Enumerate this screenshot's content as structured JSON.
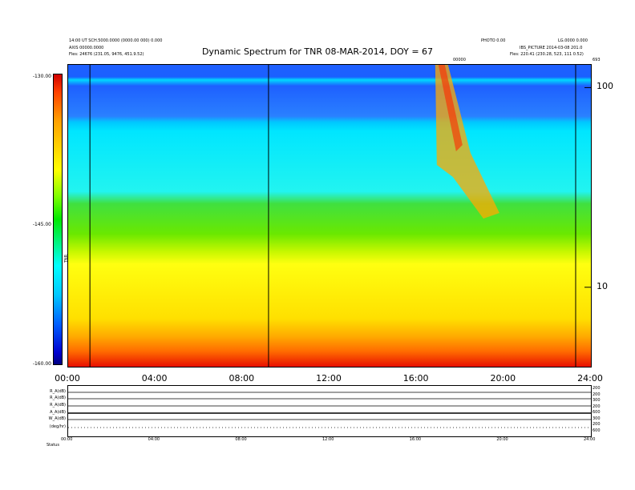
{
  "header": {
    "left_line1": "14:00 UT SCH.5000.0000 (0000.00 000) 0.000",
    "left_line2": "AXIS 00000.0000",
    "left_line3": "Fles:   24676 (231.05, 9476, 451.9.52)",
    "right_line1": "LG.0000 0.000",
    "right_line2": "IBS_PICTURE 2014-03-08 201.0",
    "right_line3": "Fles:   220.41 (230.28, 523, 111 0.52)",
    "right_small": "PHOTO 0.00",
    "corner_label": "693",
    "cursor_label": "00000"
  },
  "chart_data": {
    "type": "heatmap",
    "title": "Dynamic Spectrum for TNR 08-MAR-2014, DOY = 67",
    "x_ticks": [
      "00:00",
      "04:00",
      "08:00",
      "12:00",
      "16:00",
      "20:00",
      "24:00"
    ],
    "x_range_hours": [
      0,
      24
    ],
    "y_scale": "log",
    "y_ticks": [
      "100",
      "10"
    ],
    "y_tick_values": [
      100,
      10
    ],
    "y_range": [
      4,
      130
    ],
    "colorbar": {
      "labels": [
        "-130.00",
        "-145.00",
        "-160.00"
      ],
      "values": [
        -130,
        -145,
        -160
      ],
      "title": "TNR"
    },
    "markers_hours": [
      1.0,
      9.2,
      23.3
    ],
    "colors": {
      "top_band": "#1e5cff",
      "cyan": "#23f0ff",
      "green": "#33e000",
      "yellow": "#ffff1a",
      "orange": "#ffaa00",
      "red": "#ff2800"
    },
    "burst": {
      "start_hour": 17.0,
      "end_hour": 19.8
    }
  },
  "bottom_panel": {
    "left_labels": [
      "R_A(dB)",
      "R_A(dB)",
      "R_A(dB)",
      "A_A(dB)",
      "W_A(dB)",
      "(deg/hr)"
    ],
    "right_labels": [
      "200",
      "200",
      "300",
      "200",
      "600",
      "300",
      "200",
      "600"
    ],
    "x_ticks": [
      "00:00",
      "04:00",
      "08:00",
      "12:00",
      "16:00",
      "20:00",
      "24:00"
    ],
    "footer_label": "Status"
  }
}
